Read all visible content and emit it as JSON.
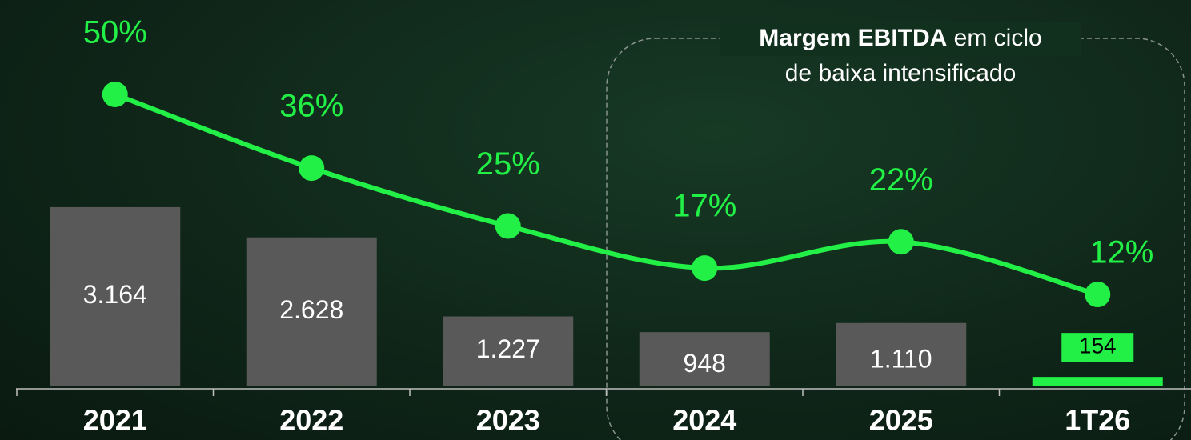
{
  "chart_data": {
    "type": "bar_line",
    "categories": [
      "2021",
      "2022",
      "2023",
      "2024",
      "2025",
      "1T26"
    ],
    "series": [
      {
        "name": "EBITDA",
        "type": "bar",
        "color": "#595959",
        "values": [
          3164,
          2628,
          1227,
          948,
          1110,
          154
        ],
        "value_labels": [
          "3.164",
          "2.628",
          "1.227",
          "948",
          "1.110",
          "154"
        ]
      },
      {
        "name": "Margem EBITDA",
        "type": "line",
        "color": "#22f046",
        "values": [
          50,
          36,
          25,
          17,
          22,
          12
        ],
        "value_labels": [
          "50%",
          "36%",
          "25%",
          "17%",
          "22%",
          "12%"
        ]
      }
    ],
    "highlight_color": "#22f046",
    "annotation": {
      "bold": "Margem EBITDA",
      "lines": [
        "em ciclo",
        "de baixa intensificado"
      ]
    }
  }
}
